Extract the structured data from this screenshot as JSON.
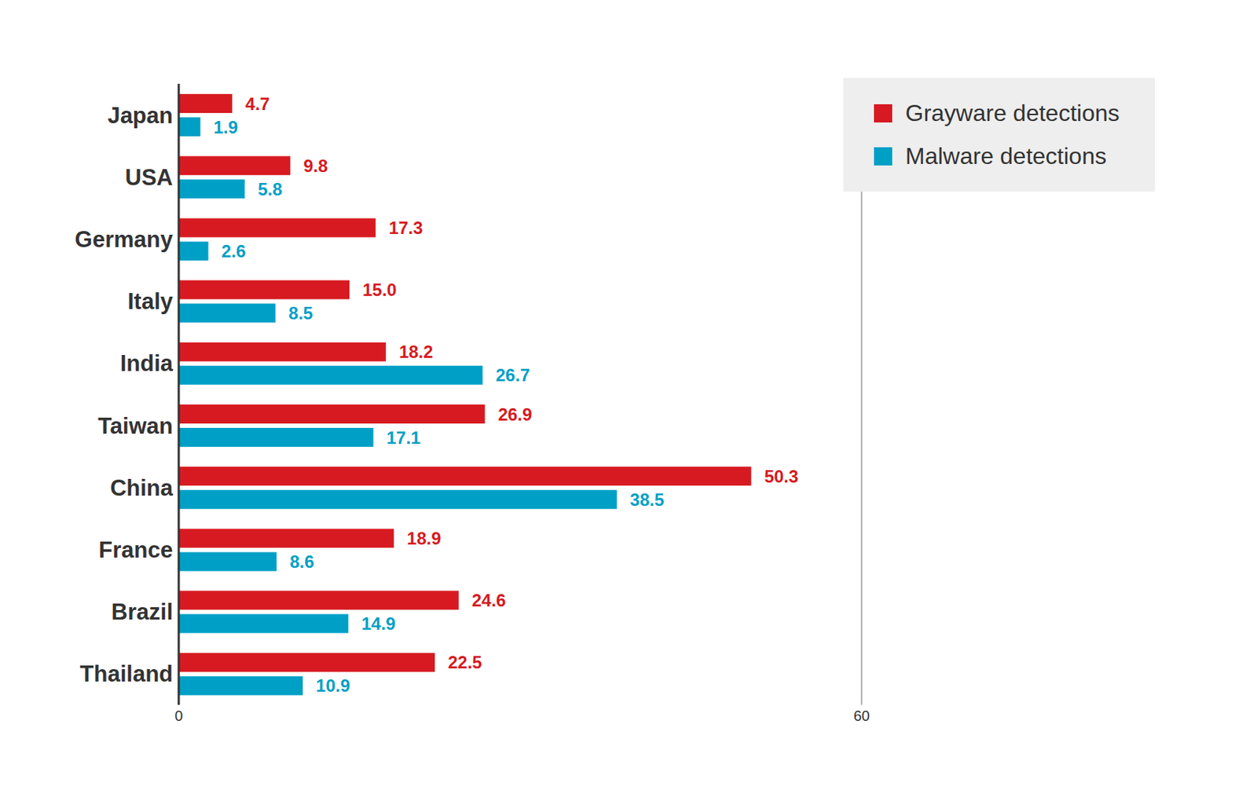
{
  "chart_data": {
    "type": "bar",
    "orientation": "horizontal",
    "categories": [
      "Japan",
      "USA",
      "Germany",
      "Italy",
      "India",
      "Taiwan",
      "China",
      "France",
      "Brazil",
      "Thailand"
    ],
    "series": [
      {
        "name": "Grayware detections",
        "color": "#d71a21",
        "values": [
          4.7,
          9.8,
          17.3,
          15.0,
          18.2,
          26.9,
          50.3,
          18.9,
          24.6,
          22.5
        ],
        "value_labels": [
          "4.7",
          "9.8",
          "17.3",
          "15.0",
          "18.2",
          "26.9",
          "50.3",
          "18.9",
          "24.6",
          "22.5"
        ]
      },
      {
        "name": "Malware detections",
        "color": "#00a0c6",
        "values": [
          1.9,
          5.8,
          2.6,
          8.5,
          26.7,
          17.1,
          38.5,
          8.6,
          14.9,
          10.9
        ],
        "value_labels": [
          "1.9",
          "5.8",
          "2.6",
          "8.5",
          "26.7",
          "17.1",
          "38.5",
          "8.6",
          "14.9",
          "10.9"
        ]
      }
    ],
    "xlim": [
      0,
      60
    ],
    "xticks": [
      0,
      60
    ],
    "grid": false,
    "data_labels": true,
    "legend": "upper right"
  }
}
